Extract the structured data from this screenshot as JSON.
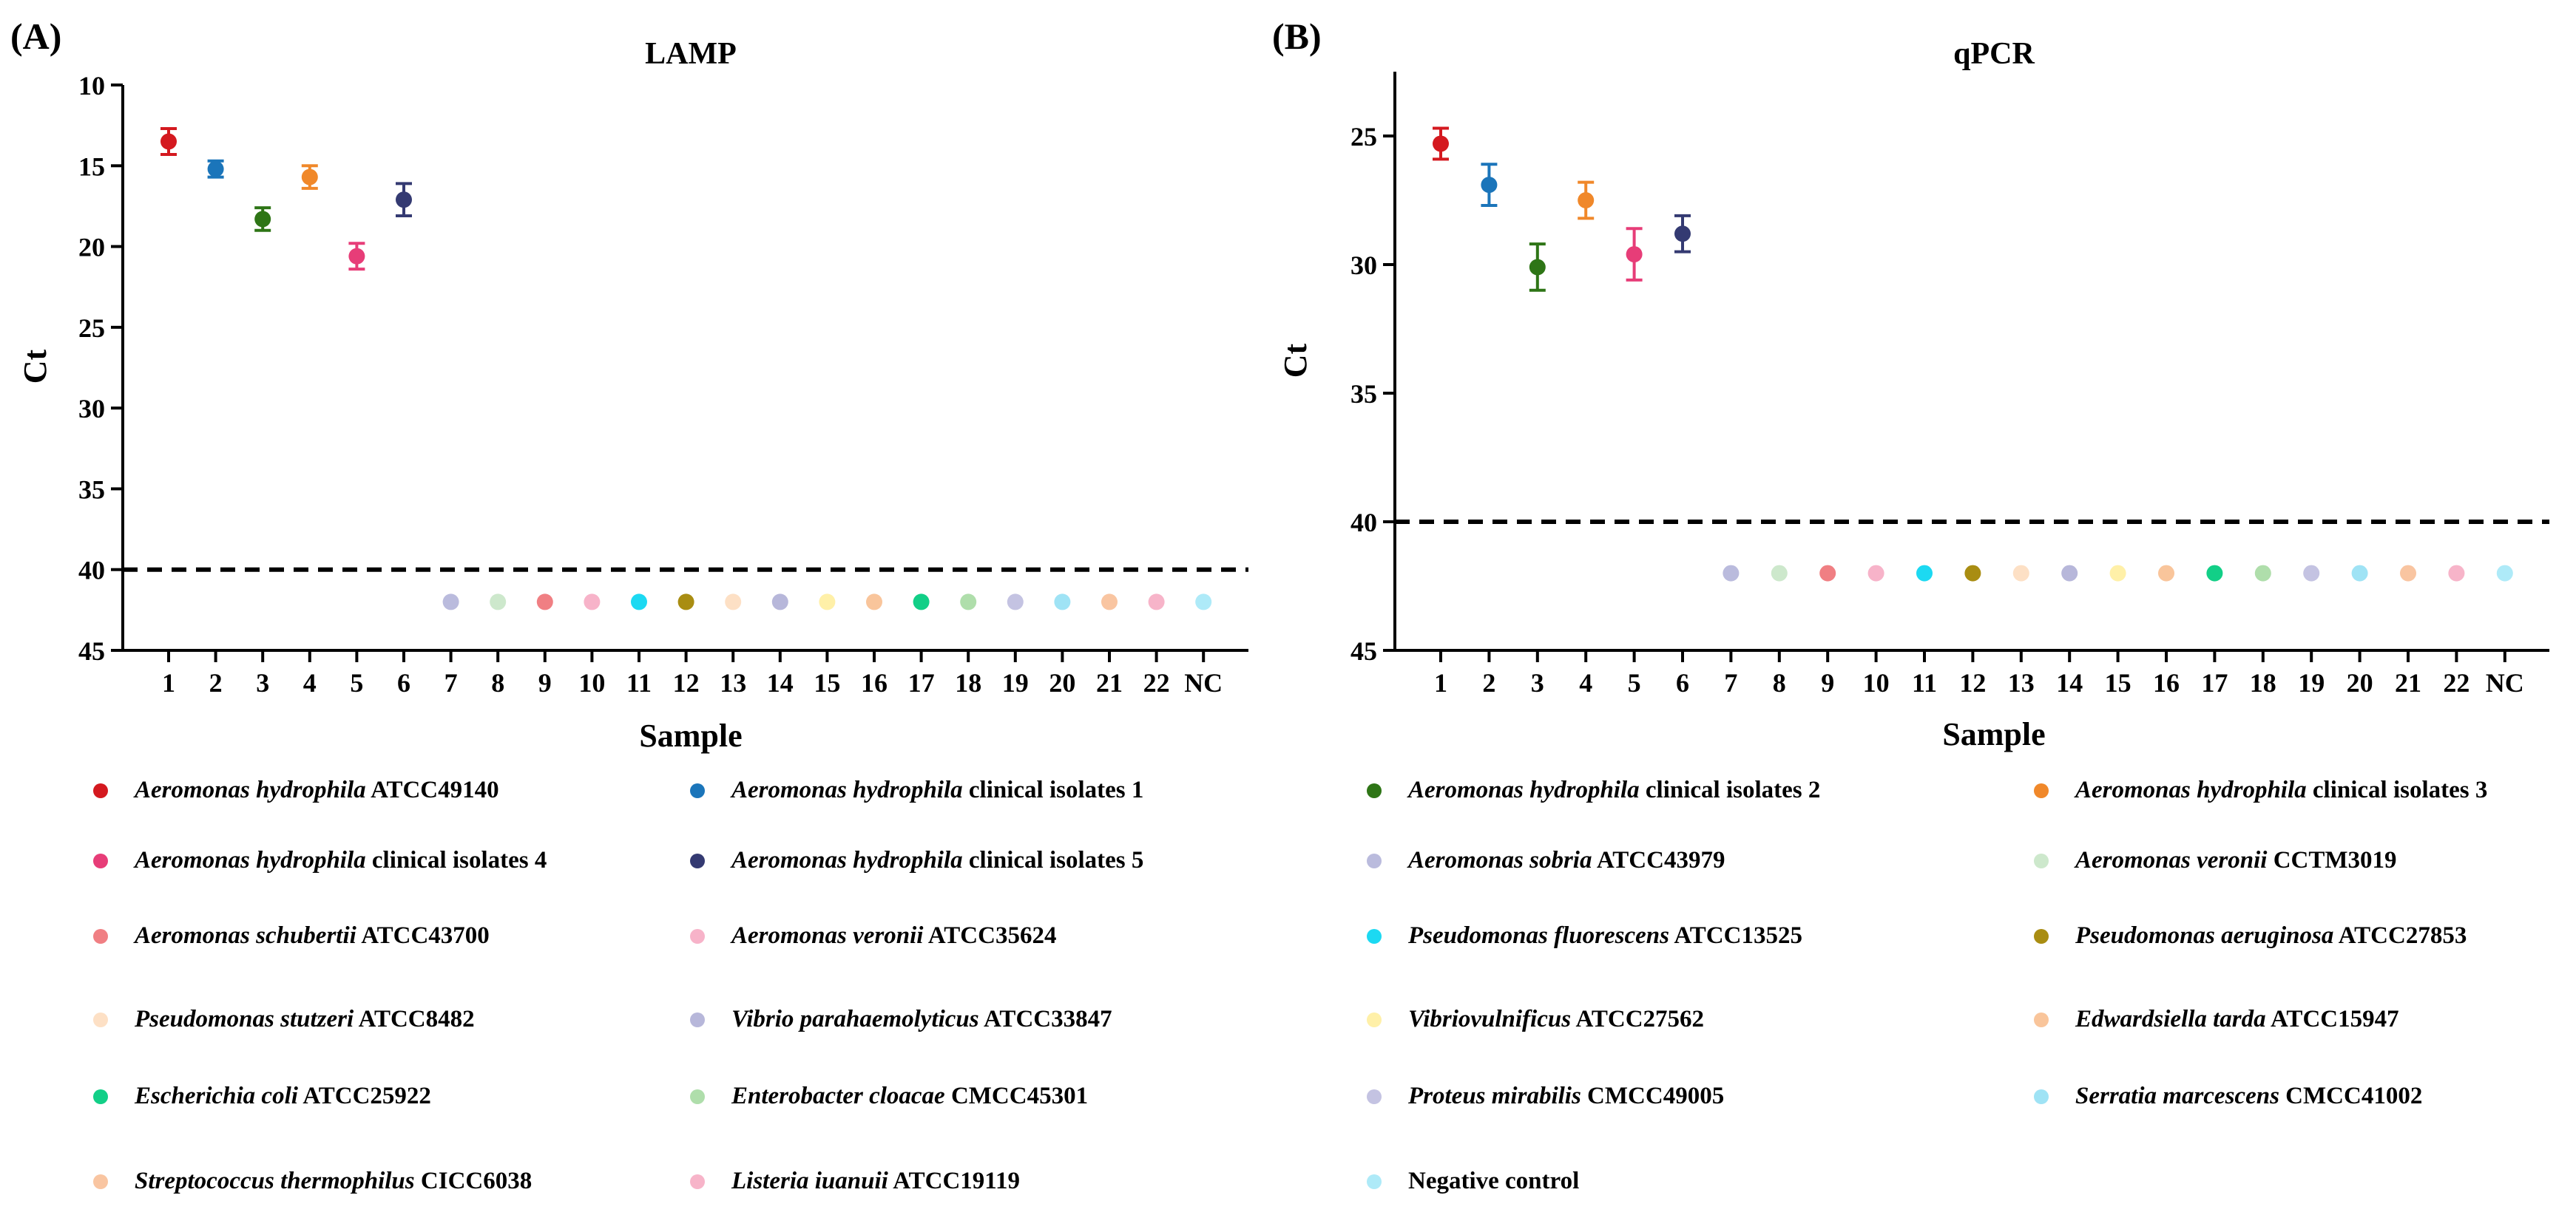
{
  "chart_data": [
    {
      "type": "scatter",
      "panel_label": "(A)",
      "title": "LAMP",
      "xlabel": "Sample",
      "ylabel": "Ct",
      "y_inverted": true,
      "ylim": [
        10,
        45
      ],
      "yticks": [
        "10",
        "15",
        "20",
        "25",
        "30",
        "35",
        "40",
        "45"
      ],
      "categories": [
        "1",
        "2",
        "3",
        "4",
        "5",
        "6",
        "7",
        "8",
        "9",
        "10",
        "11",
        "12",
        "13",
        "14",
        "15",
        "16",
        "17",
        "18",
        "19",
        "20",
        "21",
        "22",
        "NC"
      ],
      "threshold": 40,
      "points": [
        {
          "x": "1",
          "y": 13.5,
          "err": 0.8
        },
        {
          "x": "2",
          "y": 15.2,
          "err": 0.5
        },
        {
          "x": "3",
          "y": 18.3,
          "err": 0.7
        },
        {
          "x": "4",
          "y": 15.7,
          "err": 0.7
        },
        {
          "x": "5",
          "y": 20.6,
          "err": 0.8
        },
        {
          "x": "6",
          "y": 17.1,
          "err": 1.0
        },
        {
          "x": "7",
          "y": 42
        },
        {
          "x": "8",
          "y": 42
        },
        {
          "x": "9",
          "y": 42
        },
        {
          "x": "10",
          "y": 42
        },
        {
          "x": "11",
          "y": 42
        },
        {
          "x": "12",
          "y": 42
        },
        {
          "x": "13",
          "y": 42
        },
        {
          "x": "14",
          "y": 42
        },
        {
          "x": "15",
          "y": 42
        },
        {
          "x": "16",
          "y": 42
        },
        {
          "x": "17",
          "y": 42
        },
        {
          "x": "18",
          "y": 42
        },
        {
          "x": "19",
          "y": 42
        },
        {
          "x": "20",
          "y": 42
        },
        {
          "x": "21",
          "y": 42
        },
        {
          "x": "22",
          "y": 42
        },
        {
          "x": "NC",
          "y": 42
        }
      ]
    },
    {
      "type": "scatter",
      "panel_label": "(B)",
      "title": "qPCR",
      "xlabel": "Sample",
      "ylabel": "Ct",
      "y_inverted": true,
      "ylim": [
        22.5,
        45
      ],
      "yticks": [
        "25",
        "30",
        "35",
        "40",
        "45"
      ],
      "categories": [
        "1",
        "2",
        "3",
        "4",
        "5",
        "6",
        "7",
        "8",
        "9",
        "10",
        "11",
        "12",
        "13",
        "14",
        "15",
        "16",
        "17",
        "18",
        "19",
        "20",
        "21",
        "22",
        "NC"
      ],
      "threshold": 40,
      "points": [
        {
          "x": "1",
          "y": 25.3,
          "err": 0.6
        },
        {
          "x": "2",
          "y": 26.9,
          "err": 0.8
        },
        {
          "x": "3",
          "y": 30.1,
          "err": 0.9
        },
        {
          "x": "4",
          "y": 27.5,
          "err": 0.7
        },
        {
          "x": "5",
          "y": 29.6,
          "err": 1.0
        },
        {
          "x": "6",
          "y": 28.8,
          "err": 0.7
        },
        {
          "x": "7",
          "y": 42
        },
        {
          "x": "8",
          "y": 42
        },
        {
          "x": "9",
          "y": 42
        },
        {
          "x": "10",
          "y": 42
        },
        {
          "x": "11",
          "y": 42
        },
        {
          "x": "12",
          "y": 42
        },
        {
          "x": "13",
          "y": 42
        },
        {
          "x": "14",
          "y": 42
        },
        {
          "x": "15",
          "y": 42
        },
        {
          "x": "16",
          "y": 42
        },
        {
          "x": "17",
          "y": 42
        },
        {
          "x": "18",
          "y": 42
        },
        {
          "x": "19",
          "y": 42
        },
        {
          "x": "20",
          "y": 42
        },
        {
          "x": "21",
          "y": 42
        },
        {
          "x": "22",
          "y": 42
        },
        {
          "x": "NC",
          "y": 42
        }
      ]
    }
  ],
  "series_colors": [
    "#d4191f",
    "#1b75ba",
    "#2e7516",
    "#f0882a",
    "#e73d78",
    "#343a72",
    "#babbdd",
    "#cde8cc",
    "#f07f83",
    "#f7b3c9",
    "#1cd9f2",
    "#a98d12",
    "#fde0c5",
    "#b7b7da",
    "#fff0a8",
    "#f9c59b",
    "#12cf87",
    "#afdeab",
    "#c4c3e2",
    "#9fe3f5",
    "#f9c5a1",
    "#f7b4c9",
    "#aeeaf8"
  ],
  "legend": [
    {
      "italic": "Aeromonas hydrophila",
      "rest": " ATCC49140"
    },
    {
      "italic": "Aeromonas hydrophila",
      "rest": " clinical isolates 1"
    },
    {
      "italic": "Aeromonas hydrophila",
      "rest": " clinical isolates 2"
    },
    {
      "italic": "Aeromonas hydrophila",
      "rest": " clinical isolates 3"
    },
    {
      "italic": "Aeromonas hydrophila",
      "rest": " clinical isolates 4"
    },
    {
      "italic": "Aeromonas hydrophila",
      "rest": " clinical isolates 5"
    },
    {
      "italic": "Aeromonas sobria",
      "rest": " ATCC43979"
    },
    {
      "italic": "Aeromonas veronii",
      "rest": " CCTM3019"
    },
    {
      "italic": "Aeromonas schubertii",
      "rest": " ATCC43700"
    },
    {
      "italic": "Aeromonas veronii",
      "rest": " ATCC35624"
    },
    {
      "italic": "Pseudomonas fluorescens",
      "rest": " ATCC13525"
    },
    {
      "italic": "Pseudomonas aeruginosa",
      "rest": " ATCC27853"
    },
    {
      "italic": "Pseudomonas stutzeri",
      "rest": " ATCC8482"
    },
    {
      "italic": "Vibrio parahaemolyticus",
      "rest": " ATCC33847"
    },
    {
      "italic": "Vibriovulnificus",
      "rest": " ATCC27562"
    },
    {
      "italic": "Edwardsiella tarda",
      "rest": " ATCC15947"
    },
    {
      "italic": "Escherichia coli",
      "rest": " ATCC25922"
    },
    {
      "italic": "Enterobacter cloacae",
      "rest": " CMCC45301"
    },
    {
      "italic": "Proteus mirabilis",
      "rest": " CMCC49005"
    },
    {
      "italic": "Serratia marcescens",
      "rest": " CMCC41002"
    },
    {
      "italic": "Streptococcus thermophilus",
      "rest": " CICC6038"
    },
    {
      "italic": "Listeria iuanuii",
      "rest": " ATCC19119"
    },
    {
      "italic": "",
      "rest": "Negative control"
    }
  ]
}
